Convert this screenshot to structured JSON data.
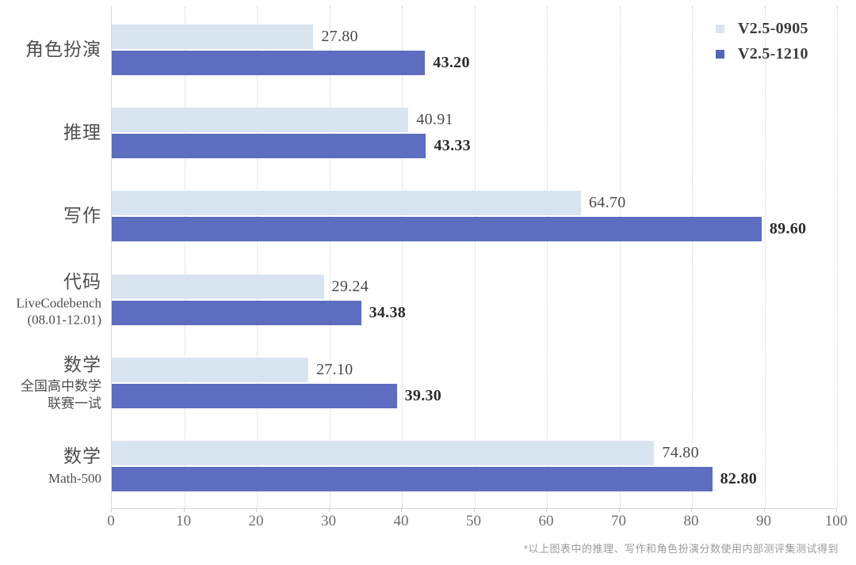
{
  "chart_data": {
    "type": "bar",
    "orientation": "horizontal",
    "title": "",
    "xlabel": "",
    "ylabel": "",
    "xlim": [
      0,
      100
    ],
    "xticks": [
      0,
      10,
      20,
      30,
      40,
      50,
      60,
      70,
      80,
      90,
      100
    ],
    "grid": "vertical-dotted",
    "legend_position": "top-right",
    "categories": [
      {
        "label": "角色扮演",
        "sublabel_lines": []
      },
      {
        "label": "推理",
        "sublabel_lines": []
      },
      {
        "label": "写作",
        "sublabel_lines": []
      },
      {
        "label": "代码",
        "sublabel_lines": [
          "LiveCodebench",
          "(08.01-12.01)"
        ]
      },
      {
        "label": "数学",
        "sublabel_lines": [
          "全国高中数学",
          "联赛一试"
        ]
      },
      {
        "label": "数学",
        "sublabel_lines": [
          "Math-500"
        ]
      }
    ],
    "series": [
      {
        "name": "V2.5-0905",
        "color": "#d9e4f1",
        "legend_color": "#dce4ee",
        "values": [
          27.8,
          40.91,
          64.7,
          29.24,
          27.1,
          74.8
        ],
        "labels": [
          "27.80",
          "40.91",
          "64.70",
          "29.24",
          "27.10",
          "74.80"
        ]
      },
      {
        "name": "V2.5-1210",
        "color": "#5d6dc0",
        "legend_color": "#5565b8",
        "values": [
          43.2,
          43.33,
          89.6,
          34.38,
          39.3,
          82.8
        ],
        "labels": [
          "43.20",
          "43.33",
          "89.60",
          "34.38",
          "39.30",
          "82.80"
        ]
      }
    ],
    "footnote": "*以上图表中的推理、写作和角色扮演分数使用内部测评集测试得到"
  }
}
